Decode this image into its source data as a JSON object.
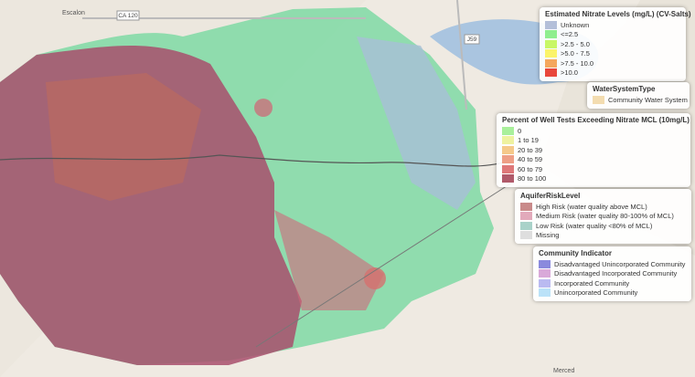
{
  "map_labels": [
    "Escalon",
    "CA 120",
    "J59",
    "Merced"
  ],
  "legends": [
    {
      "title": "Estimated Nitrate Levels (mg/L) (CV-Salts)",
      "items": [
        {
          "label": "Unknown",
          "color": "#b3bfd9"
        },
        {
          "label": "<=2.5",
          "color": "#8fee8f"
        },
        {
          "label": ">2.5 - 5.0",
          "color": "#c8f766"
        },
        {
          "label": ">5.0 - 7.5",
          "color": "#fbf46a"
        },
        {
          "label": ">7.5 - 10.0",
          "color": "#f4a75e"
        },
        {
          "label": ">10.0",
          "color": "#e8473c"
        }
      ]
    },
    {
      "title": "WaterSystemType",
      "items": [
        {
          "label": "Community Water System",
          "color": "#f3dcb0"
        }
      ]
    },
    {
      "title": "Percent of Well Tests Exceeding Nitrate MCL (10mg/L)",
      "items": [
        {
          "label": "0",
          "color": "#a9f09b"
        },
        {
          "label": "1 to 19",
          "color": "#eef2a0"
        },
        {
          "label": "20 to 39",
          "color": "#f5c98a"
        },
        {
          "label": "40 to 59",
          "color": "#ee9f86"
        },
        {
          "label": "60 to 79",
          "color": "#de7879"
        },
        {
          "label": "80 to 100",
          "color": "#b05a6a"
        }
      ]
    },
    {
      "title": "AquiferRiskLevel",
      "items": [
        {
          "label": "High Risk (water quality above MCL)",
          "color": "#c98a8a"
        },
        {
          "label": "Medium Risk (water quality 80-100% of MCL)",
          "color": "#e2aabb"
        },
        {
          "label": "Low Risk (water quality <80% of MCL)",
          "color": "#a9d2c9"
        },
        {
          "label": "Missing",
          "color": "#dedede"
        }
      ]
    },
    {
      "title": "Community Indicator",
      "items": [
        {
          "label": "Disadvantaged Unincorporated Community",
          "color": "#8a8add"
        },
        {
          "label": "Disadvantaged Incorporated Community",
          "color": "#d9a9d9"
        },
        {
          "label": "Incorporated Community",
          "color": "#babaf1"
        },
        {
          "label": "Unincorporated Community",
          "color": "#bbe2f8"
        }
      ]
    }
  ]
}
